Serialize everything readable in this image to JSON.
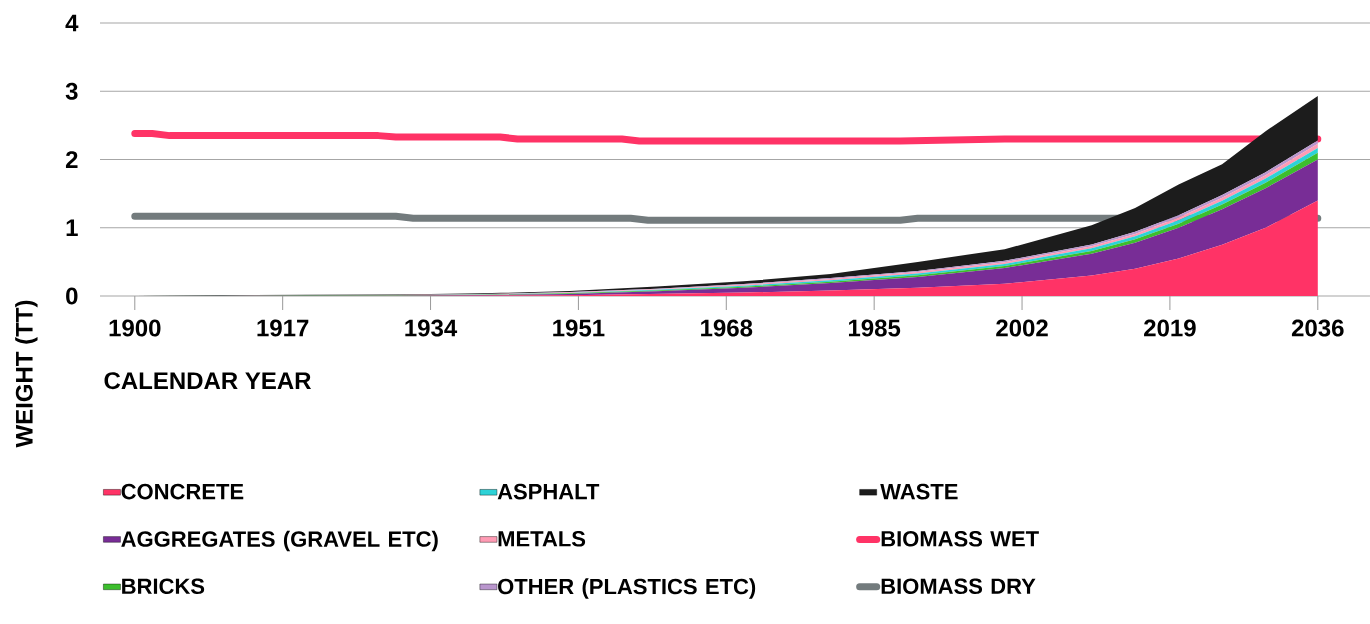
{
  "chart_data": {
    "type": "area",
    "stacked": true,
    "xlabel": "CALENDAR YEAR",
    "ylabel": "WEIGHT (TT)",
    "x": [
      1900,
      1910,
      1920,
      1930,
      1940,
      1950,
      1960,
      1970,
      1980,
      1990,
      2000,
      2010,
      2015,
      2020,
      2025,
      2030,
      2036
    ],
    "series": [
      {
        "name": "CONCRETE",
        "color": "#ff3366",
        "values": [
          0,
          0,
          0,
          0,
          0.005,
          0.01,
          0.03,
          0.05,
          0.08,
          0.12,
          0.18,
          0.3,
          0.4,
          0.55,
          0.75,
          1.0,
          1.4
        ]
      },
      {
        "name": "AGGREGATES (GRAVEL ETC)",
        "color": "#782d96",
        "values": [
          0,
          0.005,
          0.005,
          0.005,
          0.01,
          0.02,
          0.04,
          0.07,
          0.11,
          0.16,
          0.23,
          0.32,
          0.38,
          0.45,
          0.52,
          0.58,
          0.6
        ]
      },
      {
        "name": "BRICKS",
        "color": "#3cbe2d",
        "values": [
          0,
          0.002,
          0.005,
          0.005,
          0.005,
          0.01,
          0.01,
          0.015,
          0.02,
          0.025,
          0.03,
          0.04,
          0.05,
          0.06,
          0.07,
          0.08,
          0.1
        ]
      },
      {
        "name": "ASPHALT",
        "color": "#2dd2d7",
        "values": [
          0,
          0,
          0,
          0,
          0.002,
          0.005,
          0.01,
          0.015,
          0.02,
          0.025,
          0.03,
          0.04,
          0.045,
          0.05,
          0.055,
          0.06,
          0.07
        ]
      },
      {
        "name": "METALS",
        "color": "#ff9bb4",
        "values": [
          0,
          0.002,
          0.002,
          0.003,
          0.005,
          0.008,
          0.01,
          0.015,
          0.02,
          0.02,
          0.025,
          0.03,
          0.035,
          0.04,
          0.045,
          0.05,
          0.06
        ]
      },
      {
        "name": "OTHER (PLASTICS ETC)",
        "color": "#b996cd",
        "values": [
          0,
          0,
          0,
          0,
          0.002,
          0.005,
          0.008,
          0.01,
          0.012,
          0.015,
          0.02,
          0.025,
          0.03,
          0.035,
          0.04,
          0.045,
          0.05
        ]
      },
      {
        "name": "WASTE",
        "color": "#1c1c1c",
        "values": [
          0,
          0.005,
          0.005,
          0.01,
          0.01,
          0.015,
          0.03,
          0.04,
          0.06,
          0.135,
          0.17,
          0.28,
          0.35,
          0.45,
          0.45,
          0.6,
          0.65
        ]
      },
      {
        "name": "BIOMASS WET",
        "type": "line",
        "color": "#ff3366",
        "x": [
          1900,
          1902,
          1904,
          1928,
          1930,
          1942,
          1944,
          1956,
          1958,
          1988,
          2000,
          2036
        ],
        "values": [
          2.38,
          2.38,
          2.35,
          2.35,
          2.33,
          2.33,
          2.3,
          2.3,
          2.27,
          2.27,
          2.3,
          2.3
        ]
      },
      {
        "name": "BIOMASS DRY",
        "type": "line",
        "color": "#737b7d",
        "x": [
          1900,
          1930,
          1932,
          1957,
          1959,
          1988,
          1990,
          2036
        ],
        "values": [
          1.17,
          1.17,
          1.14,
          1.14,
          1.11,
          1.11,
          1.14,
          1.14
        ]
      }
    ],
    "xlim": [
      1896,
      2042
    ],
    "ylim": [
      0,
      4
    ],
    "xticks": [
      1900,
      1917,
      1934,
      1951,
      1968,
      1985,
      2002,
      2019,
      2036
    ],
    "yticks": [
      0,
      1,
      2,
      3,
      4
    ],
    "grid": "y",
    "legend": "bottom"
  }
}
